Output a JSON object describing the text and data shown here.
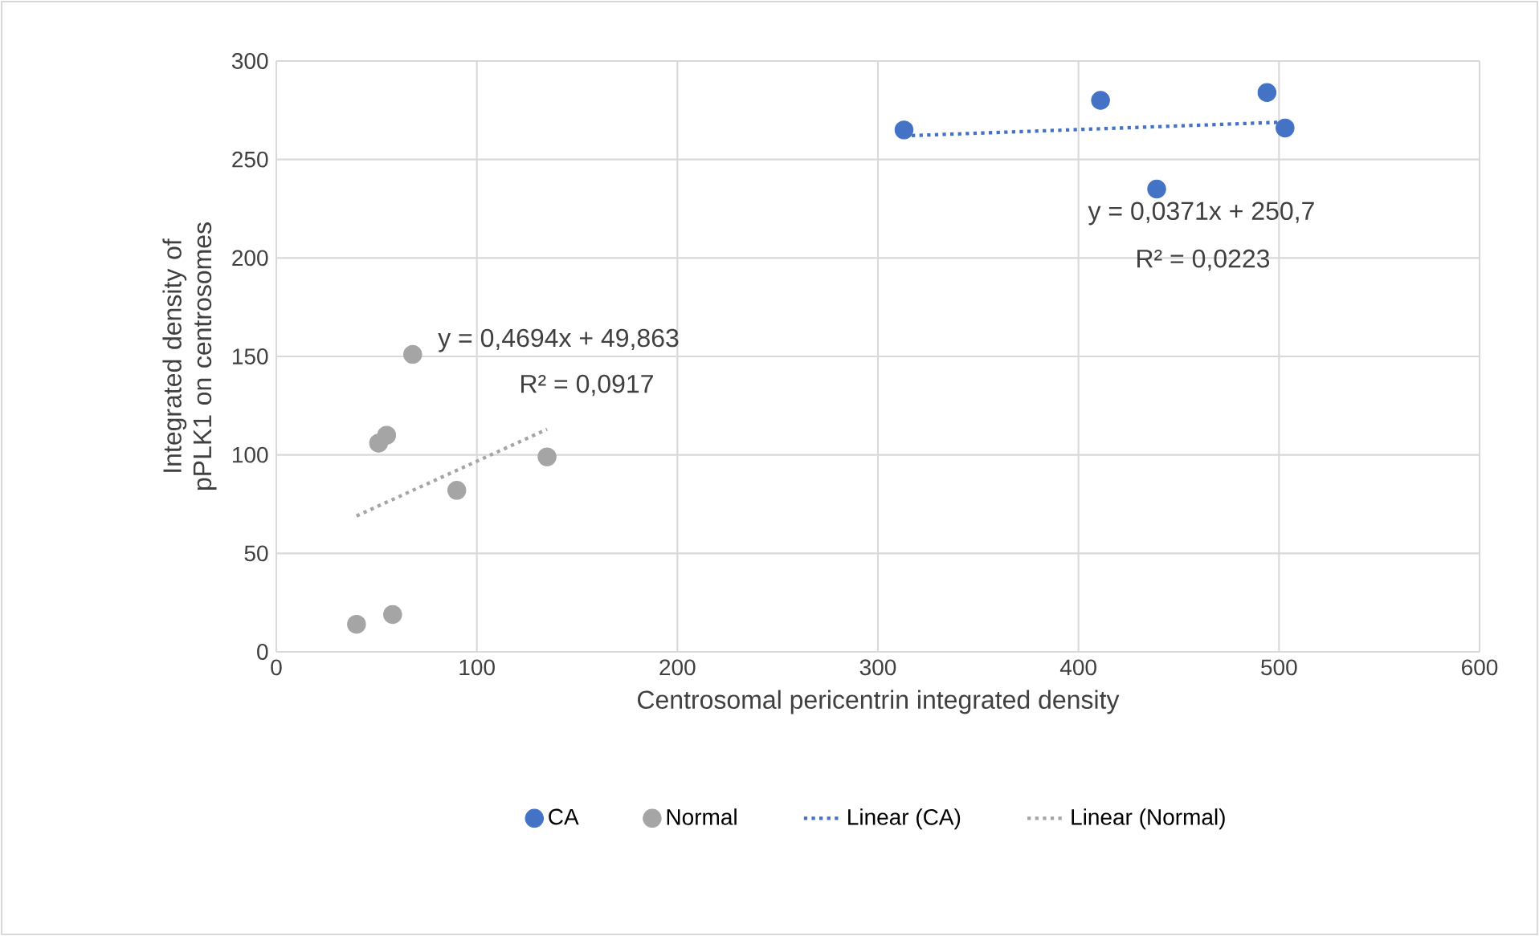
{
  "chart_data": {
    "type": "scatter",
    "xlabel": "Centrosomal pericentrin integrated density",
    "ylabel": "Integrated density of pPLK1 on centrosomes",
    "xlim": [
      0,
      600
    ],
    "xticks": [
      0,
      100,
      200,
      300,
      400,
      500,
      600
    ],
    "ylim": [
      0,
      300
    ],
    "yticks": [
      0,
      50,
      100,
      150,
      200,
      250,
      300
    ],
    "grid": true,
    "legend": "bottom",
    "series": [
      {
        "name": "CA",
        "marker": "circle",
        "color": "#4472c4",
        "x": [
          313,
          411,
          439,
          494,
          503
        ],
        "values": [
          265,
          280,
          235,
          284,
          266
        ]
      },
      {
        "name": "Normal",
        "marker": "circle",
        "color": "#a5a5a5",
        "x": [
          40,
          58,
          51,
          55,
          68,
          90,
          135
        ],
        "values": [
          14,
          19,
          106,
          110,
          151,
          82,
          99
        ]
      },
      {
        "name": "Linear (CA)",
        "type": "line",
        "line_style": "dotted",
        "marker": "none",
        "color": "#4472c4",
        "x": [
          313,
          503
        ],
        "values": [
          262,
          269
        ]
      },
      {
        "name": "Linear (Normal)",
        "type": "line",
        "line_style": "dotted",
        "marker": "none",
        "color": "#a5a5a5",
        "x": [
          40,
          135
        ],
        "values": [
          69,
          113
        ]
      }
    ],
    "annotations": [
      "y = 0,4694x + 49,863",
      "R² = 0,0917",
      "y = 0,0371x + 250,7",
      "R² = 0,0223"
    ]
  }
}
